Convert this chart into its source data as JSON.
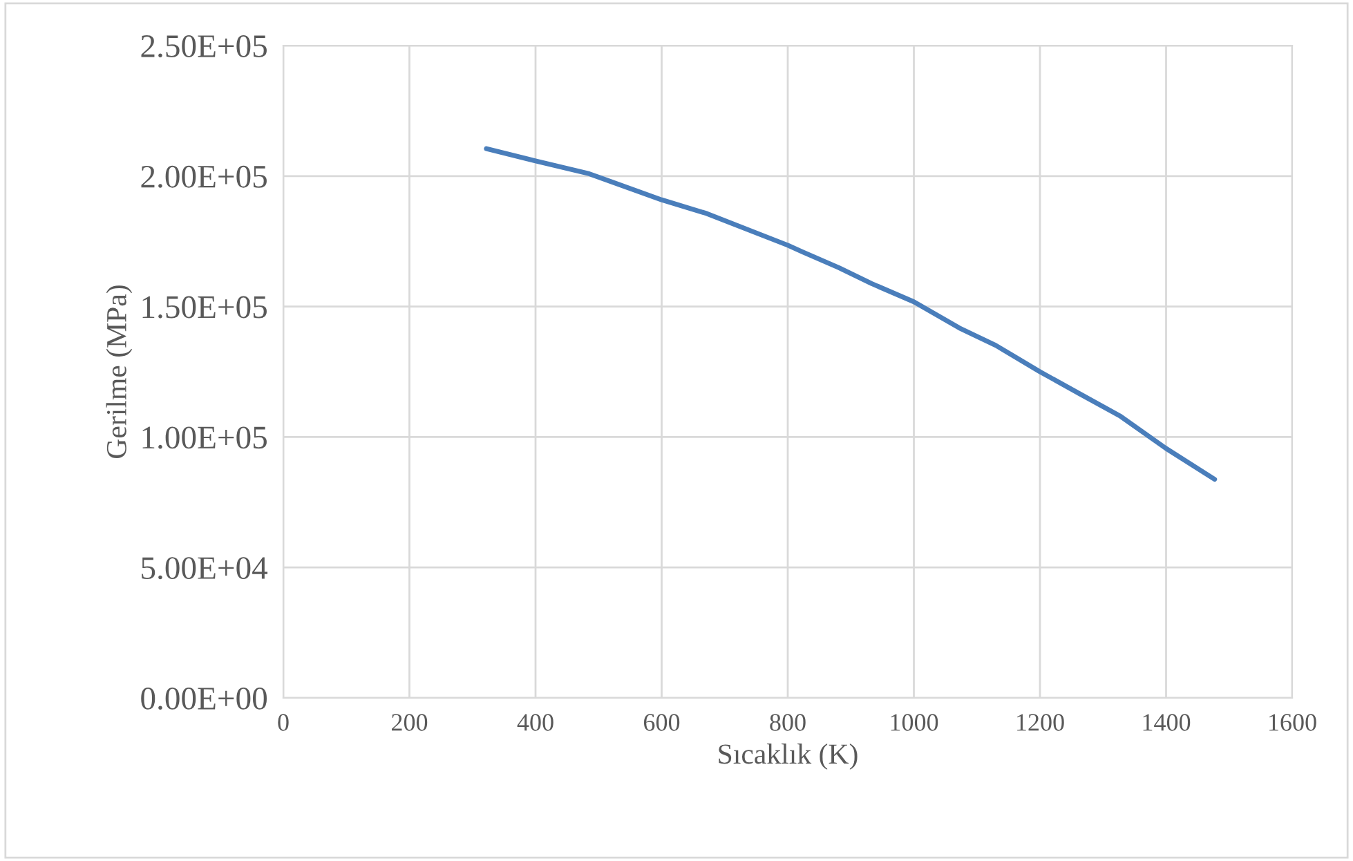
{
  "chart_data": {
    "type": "line",
    "xlabel": "Sıcaklık (K)",
    "ylabel": "Gerilme (MPa)",
    "x": [
      322,
      400,
      485,
      600,
      672,
      800,
      823,
      881,
      933,
      1000,
      1072,
      1130,
      1200,
      1262,
      1328,
      1400,
      1477
    ],
    "series": [
      {
        "color": "#4a7ebb",
        "values": [
          210500,
          205800,
          200900,
          190900,
          185600,
          173500,
          171000,
          164900,
          158800,
          151800,
          141800,
          135100,
          125000,
          116700,
          107900,
          95600,
          83800
        ]
      }
    ],
    "xlim": [
      0,
      1600
    ],
    "xticks": [
      0,
      200,
      400,
      600,
      800,
      1000,
      1200,
      1400,
      1600
    ],
    "ylim": [
      0,
      250000
    ],
    "yticks": [
      {
        "value": 0,
        "label": "0.00E+00"
      },
      {
        "value": 50000,
        "label": "5.00E+04"
      },
      {
        "value": 100000,
        "label": "1.00E+05"
      },
      {
        "value": 150000,
        "label": "1.50E+05"
      },
      {
        "value": 200000,
        "label": "2.00E+05"
      },
      {
        "value": 250000,
        "label": "2.50E+05"
      }
    ],
    "grid": true,
    "marker": "none",
    "line_style": "solid",
    "legend": false
  }
}
